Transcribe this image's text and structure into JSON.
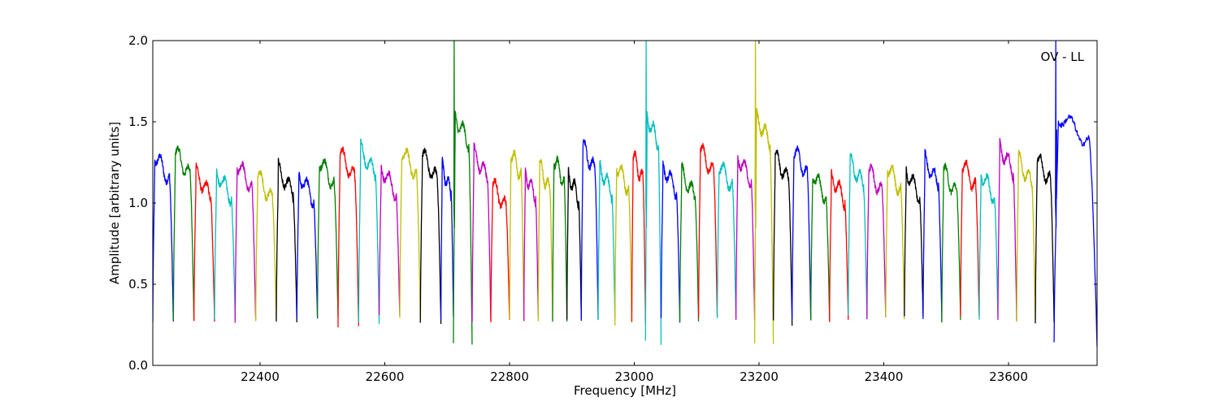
{
  "chart_data": {
    "type": "line",
    "title": "",
    "xlabel": "Frequency [MHz]",
    "ylabel": "Amplitude [arbitrary units]",
    "annotation": "OV - LL",
    "xlim": [
      22228,
      23742
    ],
    "ylim": [
      0.0,
      2.0
    ],
    "xticks": [
      22400,
      22600,
      22800,
      23000,
      23200,
      23400,
      23600
    ],
    "xtick_labels": [
      "22400",
      "22600",
      "22800",
      "23000",
      "23200",
      "23400",
      "23600"
    ],
    "yticks": [
      0.0,
      0.5,
      1.0,
      1.5,
      2.0
    ],
    "ytick_labels": [
      "0.0",
      "0.5",
      "1.0",
      "1.5",
      "2.0"
    ],
    "grid": false,
    "legend": "none",
    "colors": [
      "#0000ff",
      "#008000",
      "#ff0000",
      "#00bfbf",
      "#bf00bf",
      "#bfbf00",
      "#000000"
    ],
    "series": [
      {
        "x0": 22228,
        "x1": 22261,
        "peak": 1.3,
        "min": 0.26,
        "color": "#0000ff"
      },
      {
        "x0": 22261,
        "x1": 22294,
        "peak": 1.32,
        "min": 0.27,
        "color": "#008000"
      },
      {
        "x0": 22294,
        "x1": 22327,
        "peak": 1.19,
        "min": 0.28,
        "color": "#ff0000"
      },
      {
        "x0": 22327,
        "x1": 22360,
        "peak": 1.19,
        "min": 0.3,
        "color": "#00bfbf"
      },
      {
        "x0": 22360,
        "x1": 22393,
        "peak": 1.25,
        "min": 0.27,
        "color": "#bf00bf"
      },
      {
        "x0": 22393,
        "x1": 22426,
        "peak": 1.17,
        "min": 0.28,
        "color": "#bfbf00"
      },
      {
        "x0": 22426,
        "x1": 22459,
        "peak": 1.21,
        "min": 0.28,
        "color": "#000000"
      },
      {
        "x0": 22459,
        "x1": 22492,
        "peak": 1.18,
        "min": 0.29,
        "color": "#0000ff"
      },
      {
        "x0": 22492,
        "x1": 22525,
        "peak": 1.27,
        "min": 0.3,
        "color": "#008000"
      },
      {
        "x0": 22525,
        "x1": 22558,
        "peak": 1.31,
        "min": 0.25,
        "color": "#ff0000"
      },
      {
        "x0": 22558,
        "x1": 22591,
        "peak": 1.33,
        "min": 0.26,
        "color": "#00bfbf"
      },
      {
        "x0": 22591,
        "x1": 22624,
        "peak": 1.22,
        "min": 0.3,
        "color": "#bf00bf"
      },
      {
        "x0": 22624,
        "x1": 22657,
        "peak": 1.33,
        "min": 0.3,
        "color": "#bfbf00"
      },
      {
        "x0": 22657,
        "x1": 22690,
        "peak": 1.3,
        "min": 0.26,
        "color": "#000000"
      },
      {
        "x0": 22690,
        "x1": 22710,
        "peak": 1.22,
        "min": 0.29,
        "color": "#0000ff"
      },
      {
        "x0": 22710,
        "x1": 22740,
        "peak": 1.53,
        "min": 0.13,
        "spike": 2.0,
        "color": "#008000"
      },
      {
        "x0": 22740,
        "x1": 22770,
        "peak": 1.31,
        "min": 0.26,
        "color": "#bf00bf"
      },
      {
        "x0": 22770,
        "x1": 22800,
        "peak": 1.12,
        "min": 0.27,
        "color": "#ff0000"
      },
      {
        "x0": 22800,
        "x1": 22823,
        "peak": 1.32,
        "min": 0.27,
        "color": "#bfbf00"
      },
      {
        "x0": 22823,
        "x1": 22846,
        "peak": 1.19,
        "min": 0.29,
        "color": "#bf00bf"
      },
      {
        "x0": 22846,
        "x1": 22869,
        "peak": 1.23,
        "min": 0.28,
        "color": "#bfbf00"
      },
      {
        "x0": 22869,
        "x1": 22892,
        "peak": 1.28,
        "min": 0.28,
        "color": "#008000"
      },
      {
        "x0": 22892,
        "x1": 22915,
        "peak": 1.18,
        "min": 0.29,
        "color": "#000000"
      },
      {
        "x0": 22915,
        "x1": 22942,
        "peak": 1.35,
        "min": 0.27,
        "color": "#0000ff"
      },
      {
        "x0": 22942,
        "x1": 22969,
        "peak": 1.22,
        "min": 0.28,
        "color": "#00bfbf"
      },
      {
        "x0": 22969,
        "x1": 22996,
        "peak": 1.24,
        "min": 0.26,
        "color": "#bfbf00"
      },
      {
        "x0": 22996,
        "x1": 23018,
        "peak": 1.29,
        "min": 0.27,
        "color": "#ff0000"
      },
      {
        "x0": 23018,
        "x1": 23043,
        "peak": 1.53,
        "min": 0.14,
        "spike": 2.0,
        "color": "#00bfbf"
      },
      {
        "x0": 23043,
        "x1": 23073,
        "peak": 1.23,
        "min": 0.28,
        "color": "#0000ff"
      },
      {
        "x0": 23073,
        "x1": 23103,
        "peak": 1.19,
        "min": 0.27,
        "color": "#008000"
      },
      {
        "x0": 23103,
        "x1": 23133,
        "peak": 1.33,
        "min": 0.29,
        "color": "#ff0000"
      },
      {
        "x0": 23133,
        "x1": 23163,
        "peak": 1.25,
        "min": 0.28,
        "color": "#00bfbf"
      },
      {
        "x0": 23163,
        "x1": 23193,
        "peak": 1.29,
        "min": 0.28,
        "color": "#bf00bf"
      },
      {
        "x0": 23193,
        "x1": 23223,
        "peak": 1.53,
        "min": 0.13,
        "spike": 2.0,
        "color": "#bfbf00"
      },
      {
        "x0": 23223,
        "x1": 23253,
        "peak": 1.29,
        "min": 0.26,
        "color": "#000000"
      },
      {
        "x0": 23253,
        "x1": 23283,
        "peak": 1.33,
        "min": 0.27,
        "color": "#0000ff"
      },
      {
        "x0": 23283,
        "x1": 23313,
        "peak": 1.19,
        "min": 0.29,
        "color": "#008000"
      },
      {
        "x0": 23313,
        "x1": 23343,
        "peak": 1.17,
        "min": 0.28,
        "color": "#ff0000"
      },
      {
        "x0": 23343,
        "x1": 23373,
        "peak": 1.26,
        "min": 0.3,
        "color": "#00bfbf"
      },
      {
        "x0": 23373,
        "x1": 23403,
        "peak": 1.21,
        "min": 0.3,
        "color": "#bf00bf"
      },
      {
        "x0": 23403,
        "x1": 23433,
        "peak": 1.23,
        "min": 0.3,
        "color": "#bfbf00"
      },
      {
        "x0": 23433,
        "x1": 23463,
        "peak": 1.2,
        "min": 0.29,
        "color": "#000000"
      },
      {
        "x0": 23463,
        "x1": 23493,
        "peak": 1.27,
        "min": 0.29,
        "color": "#0000ff"
      },
      {
        "x0": 23493,
        "x1": 23523,
        "peak": 1.2,
        "min": 0.28,
        "color": "#008000"
      },
      {
        "x0": 23523,
        "x1": 23553,
        "peak": 1.25,
        "min": 0.29,
        "color": "#ff0000"
      },
      {
        "x0": 23553,
        "x1": 23583,
        "peak": 1.19,
        "min": 0.29,
        "color": "#00bfbf"
      },
      {
        "x0": 23583,
        "x1": 23613,
        "peak": 1.35,
        "min": 0.29,
        "color": "#bf00bf"
      },
      {
        "x0": 23613,
        "x1": 23643,
        "peak": 1.27,
        "min": 0.27,
        "color": "#bfbf00"
      },
      {
        "x0": 23643,
        "x1": 23673,
        "peak": 1.28,
        "min": 0.27,
        "color": "#000000"
      },
      {
        "x0": 23673,
        "x1": 23742,
        "peak": 1.54,
        "min": 0.13,
        "spike": 2.0,
        "color": "#0000ff"
      }
    ]
  }
}
